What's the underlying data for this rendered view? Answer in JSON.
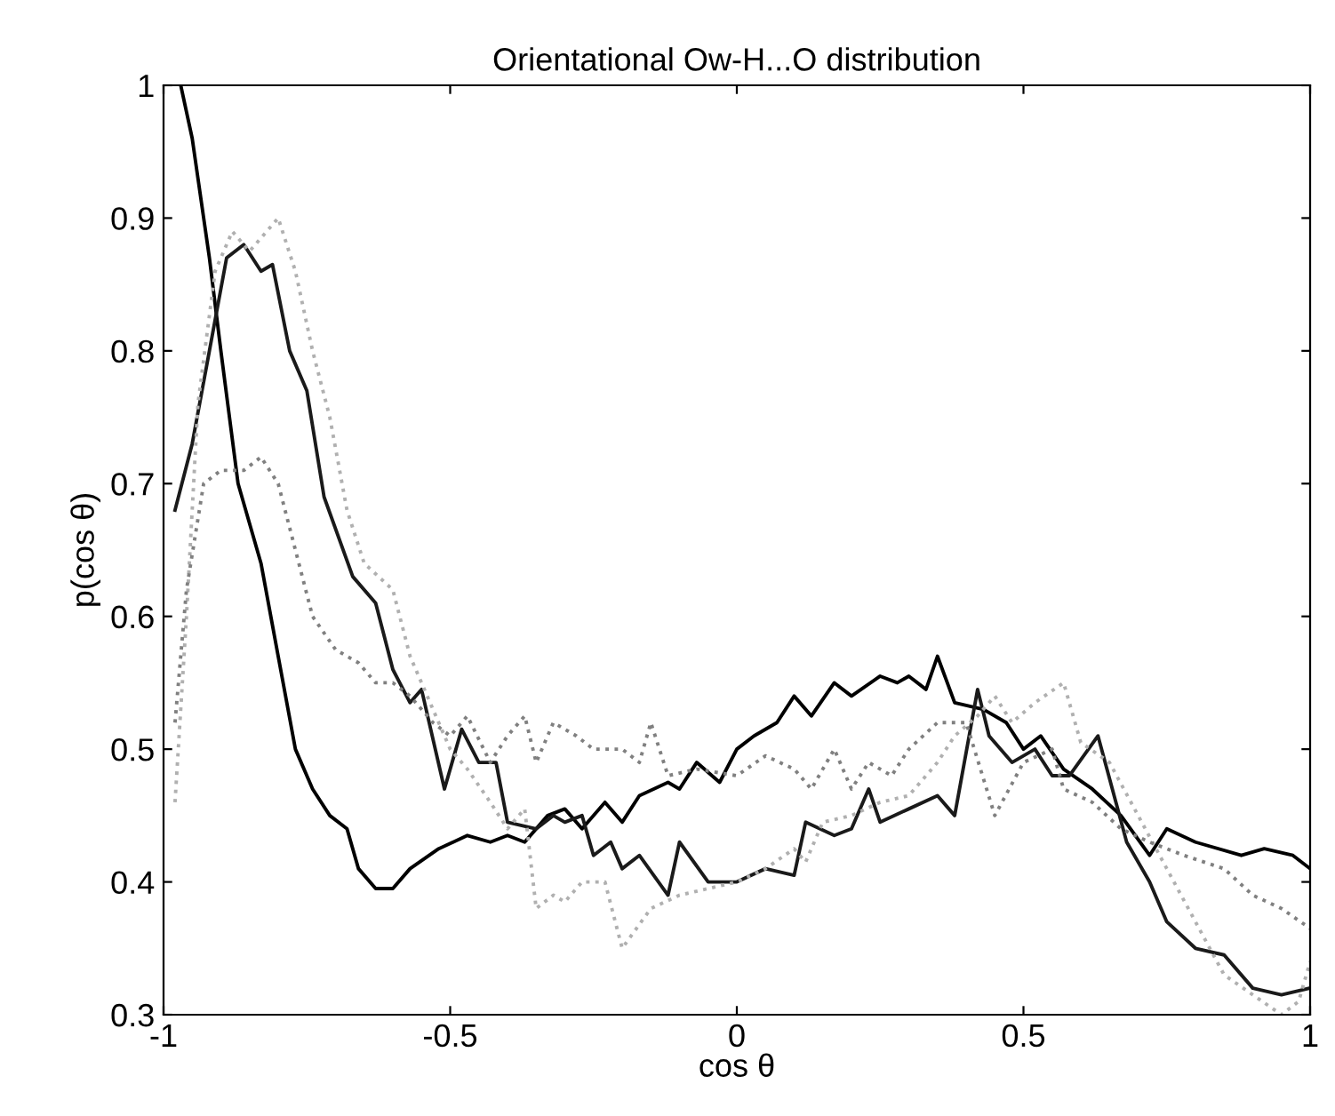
{
  "chart_data": {
    "type": "line",
    "title": "Orientational Ow-H...O distribution",
    "xlabel": "cos θ",
    "ylabel": "p(cos θ)",
    "xlim": [
      -1,
      1
    ],
    "ylim": [
      0.3,
      1
    ],
    "xticks": [
      -1,
      -0.5,
      0,
      0.5,
      1
    ],
    "yticks": [
      0.3,
      0.4,
      0.5,
      0.6,
      0.7,
      0.8,
      0.9,
      1
    ],
    "grid": false,
    "marker": "none",
    "series": [
      {
        "color": "#000000",
        "line_style": "solid",
        "x": [
          -0.97,
          -0.95,
          -0.92,
          -0.9,
          -0.87,
          -0.83,
          -0.8,
          -0.77,
          -0.74,
          -0.71,
          -0.68,
          -0.66,
          -0.63,
          -0.6,
          -0.57,
          -0.52,
          -0.47,
          -0.43,
          -0.4,
          -0.37,
          -0.33,
          -0.3,
          -0.27,
          -0.23,
          -0.2,
          -0.17,
          -0.12,
          -0.1,
          -0.07,
          -0.03,
          0,
          0.03,
          0.07,
          0.1,
          0.13,
          0.17,
          0.2,
          0.25,
          0.28,
          0.3,
          0.33,
          0.35,
          0.38,
          0.43,
          0.47,
          0.5,
          0.53,
          0.57,
          0.62,
          0.67,
          0.72,
          0.75,
          0.8,
          0.88,
          0.92,
          0.97,
          1.0
        ],
        "values": [
          1.0,
          0.96,
          0.87,
          0.8,
          0.7,
          0.64,
          0.57,
          0.5,
          0.47,
          0.45,
          0.44,
          0.41,
          0.395,
          0.395,
          0.41,
          0.425,
          0.435,
          0.43,
          0.435,
          0.43,
          0.45,
          0.455,
          0.44,
          0.46,
          0.445,
          0.465,
          0.475,
          0.47,
          0.49,
          0.475,
          0.5,
          0.51,
          0.52,
          0.54,
          0.525,
          0.55,
          0.54,
          0.555,
          0.55,
          0.555,
          0.545,
          0.57,
          0.535,
          0.53,
          0.52,
          0.5,
          0.51,
          0.485,
          0.47,
          0.45,
          0.42,
          0.44,
          0.43,
          0.42,
          0.425,
          0.42,
          0.41
        ]
      },
      {
        "color": "#1a1a1a",
        "line_style": "solid",
        "x": [
          -0.98,
          -0.95,
          -0.92,
          -0.89,
          -0.86,
          -0.83,
          -0.81,
          -0.78,
          -0.75,
          -0.72,
          -0.67,
          -0.63,
          -0.6,
          -0.57,
          -0.55,
          -0.51,
          -0.48,
          -0.45,
          -0.42,
          -0.4,
          -0.35,
          -0.32,
          -0.3,
          -0.27,
          -0.25,
          -0.22,
          -0.2,
          -0.17,
          -0.12,
          -0.1,
          -0.05,
          0,
          0.05,
          0.1,
          0.12,
          0.17,
          0.2,
          0.23,
          0.25,
          0.3,
          0.35,
          0.38,
          0.42,
          0.44,
          0.48,
          0.52,
          0.55,
          0.58,
          0.63,
          0.68,
          0.72,
          0.75,
          0.8,
          0.85,
          0.9,
          0.95,
          1.0
        ],
        "values": [
          0.68,
          0.73,
          0.8,
          0.87,
          0.88,
          0.86,
          0.865,
          0.8,
          0.77,
          0.69,
          0.63,
          0.61,
          0.56,
          0.535,
          0.545,
          0.47,
          0.515,
          0.49,
          0.49,
          0.445,
          0.44,
          0.45,
          0.445,
          0.45,
          0.42,
          0.43,
          0.41,
          0.42,
          0.39,
          0.43,
          0.4,
          0.4,
          0.41,
          0.405,
          0.445,
          0.435,
          0.44,
          0.47,
          0.445,
          0.455,
          0.465,
          0.45,
          0.545,
          0.51,
          0.49,
          0.5,
          0.48,
          0.48,
          0.51,
          0.43,
          0.4,
          0.37,
          0.35,
          0.345,
          0.32,
          0.315,
          0.32
        ]
      },
      {
        "color": "#b0b0b0",
        "line_style": "dotted",
        "x": [
          -0.98,
          -0.96,
          -0.94,
          -0.91,
          -0.88,
          -0.85,
          -0.8,
          -0.77,
          -0.74,
          -0.71,
          -0.68,
          -0.65,
          -0.6,
          -0.57,
          -0.53,
          -0.5,
          -0.47,
          -0.43,
          -0.4,
          -0.37,
          -0.35,
          -0.32,
          -0.3,
          -0.27,
          -0.23,
          -0.2,
          -0.15,
          -0.1,
          0,
          0.05,
          0.1,
          0.12,
          0.15,
          0.2,
          0.25,
          0.3,
          0.35,
          0.38,
          0.42,
          0.45,
          0.48,
          0.52,
          0.57,
          0.6,
          0.65,
          0.7,
          0.75,
          0.8,
          0.85,
          0.9,
          0.95,
          0.98,
          1.0
        ],
        "values": [
          0.46,
          0.6,
          0.76,
          0.86,
          0.89,
          0.875,
          0.9,
          0.86,
          0.8,
          0.75,
          0.68,
          0.64,
          0.62,
          0.57,
          0.53,
          0.5,
          0.485,
          0.46,
          0.44,
          0.455,
          0.38,
          0.39,
          0.385,
          0.4,
          0.4,
          0.35,
          0.38,
          0.39,
          0.4,
          0.41,
          0.425,
          0.415,
          0.445,
          0.45,
          0.46,
          0.465,
          0.49,
          0.51,
          0.525,
          0.54,
          0.52,
          0.535,
          0.55,
          0.505,
          0.49,
          0.45,
          0.41,
          0.37,
          0.33,
          0.315,
          0.3,
          0.31,
          0.34
        ]
      },
      {
        "color": "#808080",
        "line_style": "dotted",
        "x": [
          -0.98,
          -0.96,
          -0.93,
          -0.9,
          -0.86,
          -0.83,
          -0.8,
          -0.77,
          -0.74,
          -0.7,
          -0.66,
          -0.63,
          -0.6,
          -0.57,
          -0.53,
          -0.5,
          -0.47,
          -0.43,
          -0.4,
          -0.37,
          -0.35,
          -0.32,
          -0.28,
          -0.25,
          -0.2,
          -0.17,
          -0.15,
          -0.12,
          -0.07,
          0,
          0.05,
          0.1,
          0.13,
          0.17,
          0.2,
          0.23,
          0.27,
          0.3,
          0.35,
          0.4,
          0.45,
          0.5,
          0.55,
          0.57,
          0.62,
          0.67,
          0.72,
          0.78,
          0.85,
          0.9,
          0.95,
          1.0
        ],
        "values": [
          0.52,
          0.62,
          0.7,
          0.71,
          0.71,
          0.72,
          0.7,
          0.65,
          0.6,
          0.575,
          0.565,
          0.55,
          0.55,
          0.54,
          0.52,
          0.51,
          0.525,
          0.49,
          0.51,
          0.525,
          0.49,
          0.52,
          0.51,
          0.5,
          0.5,
          0.49,
          0.52,
          0.48,
          0.485,
          0.48,
          0.495,
          0.485,
          0.47,
          0.5,
          0.47,
          0.49,
          0.48,
          0.5,
          0.52,
          0.52,
          0.45,
          0.49,
          0.5,
          0.47,
          0.46,
          0.44,
          0.43,
          0.42,
          0.41,
          0.39,
          0.38,
          0.365
        ]
      }
    ]
  }
}
